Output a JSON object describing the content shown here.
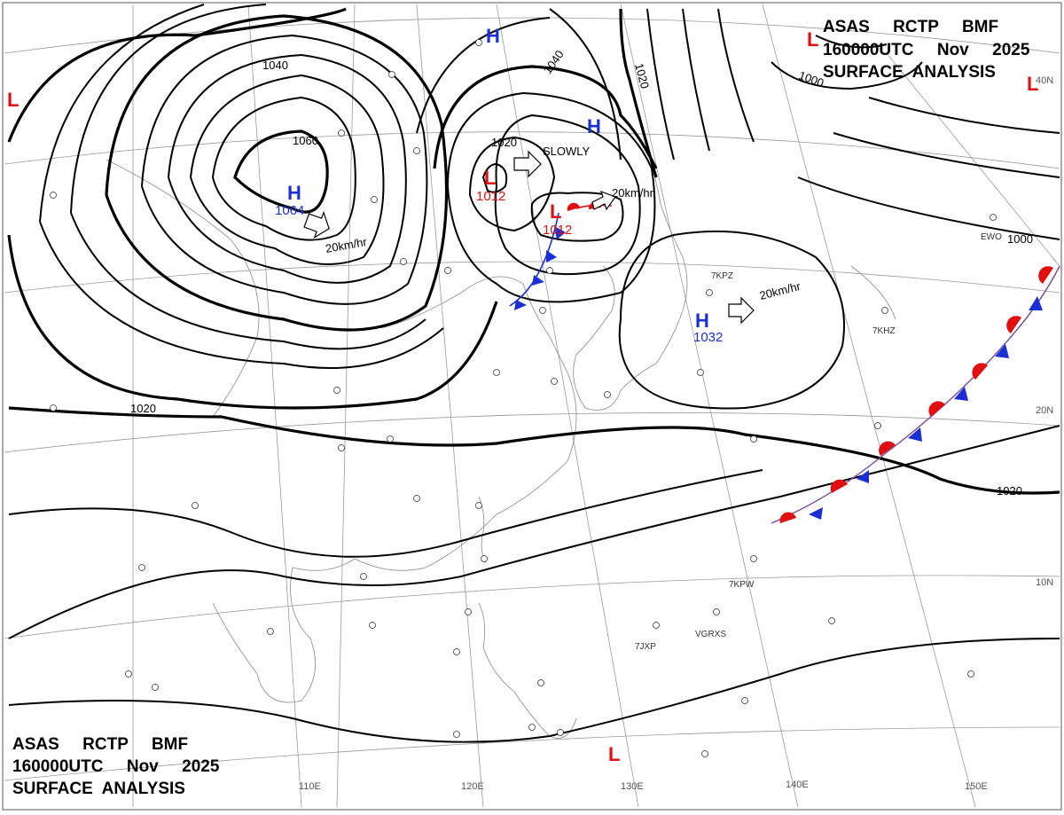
{
  "header_top_right": {
    "line1": "ASAS     RCTP     BMF",
    "line2": "160000UTC     Nov     2025",
    "line3": "SURFACE  ANALYSIS"
  },
  "header_bottom_left": {
    "line1": "ASAS     RCTP     BMF",
    "line2": "160000UTC     Nov     2025",
    "line3": "SURFACE  ANALYSIS"
  },
  "longitude_labels": [
    "110E",
    "120E",
    "130E",
    "140E",
    "150E"
  ],
  "latitude_labels": [
    "40N",
    "20N",
    "10N"
  ],
  "isobar_labels": [
    "1060",
    "1040",
    "1040",
    "1020",
    "1020",
    "1020",
    "1020",
    "1000"
  ],
  "high_centers": [
    {
      "letter": "H",
      "value": "1064"
    },
    {
      "letter": "H",
      "value": "1032"
    },
    {
      "letter": "H",
      "value": ""
    },
    {
      "letter": "H",
      "value": ""
    }
  ],
  "low_centers": [
    {
      "letter": "L",
      "value": "1012"
    },
    {
      "letter": "L",
      "value": "1012"
    },
    {
      "letter": "L",
      "value": ""
    },
    {
      "letter": "L",
      "value": ""
    },
    {
      "letter": "L",
      "value": ""
    },
    {
      "letter": "L",
      "value": ""
    }
  ],
  "motion_labels": [
    "20km/hr",
    "SLOWLY",
    "20km/hr",
    "20km/hr"
  ],
  "station_codes": [
    "EWO",
    "7KPZ",
    "7KHZ",
    "7KPW",
    "7JXP",
    "VGRXS"
  ],
  "colors": {
    "high": "#1a2fd4",
    "low": "#e01010",
    "isobar": "#000000",
    "grid": "#9a9a9a"
  }
}
